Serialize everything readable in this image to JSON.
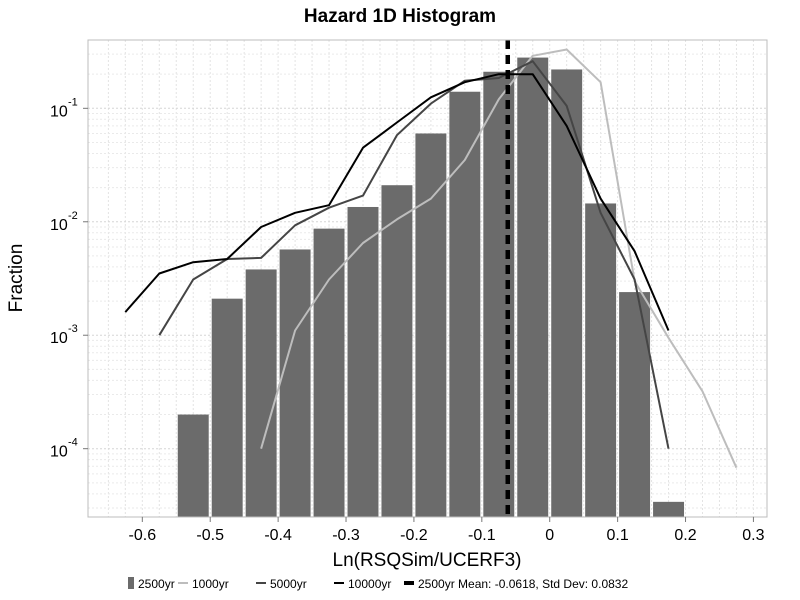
{
  "chart_data": {
    "type": "bar",
    "title": "Hazard 1D Histogram",
    "xlabel": "Ln(RSQSim/UCERF3)",
    "ylabel": "Fraction",
    "xlim": [
      -0.68,
      0.32
    ],
    "ylim": [
      2.5e-05,
      0.4
    ],
    "yscale": "log",
    "grid": true,
    "legend_position": "bottom",
    "x_ticks": [
      {
        "value": -0.6,
        "label": "-0.6"
      },
      {
        "value": -0.5,
        "label": "-0.5"
      },
      {
        "value": -0.4,
        "label": "-0.4"
      },
      {
        "value": -0.3,
        "label": "-0.3"
      },
      {
        "value": -0.2,
        "label": "-0.2"
      },
      {
        "value": -0.1,
        "label": "-0.1"
      },
      {
        "value": 0.0,
        "label": "0"
      },
      {
        "value": 0.1,
        "label": "0.1"
      },
      {
        "value": 0.2,
        "label": "0.2"
      },
      {
        "value": 0.3,
        "label": "0.3"
      }
    ],
    "y_ticks": [
      {
        "value": 0.1,
        "base": "10",
        "exp": "-1"
      },
      {
        "value": 0.01,
        "base": "10",
        "exp": "-2"
      },
      {
        "value": 0.001,
        "base": "10",
        "exp": "-3"
      },
      {
        "value": 0.0001,
        "base": "10",
        "exp": "-4"
      }
    ],
    "bars": {
      "name": "2500yr",
      "color": "#6b6b6b",
      "bin_width": 0.05,
      "centers": [
        -0.525,
        -0.475,
        -0.425,
        -0.375,
        -0.325,
        -0.275,
        -0.225,
        -0.175,
        -0.125,
        -0.075,
        -0.025,
        0.025,
        0.075,
        0.125,
        0.175
      ],
      "values": [
        0.0002,
        0.0021,
        0.0038,
        0.0057,
        0.0087,
        0.0135,
        0.021,
        0.06,
        0.14,
        0.21,
        0.28,
        0.22,
        0.0145,
        0.0024,
        3.4e-05
      ]
    },
    "series": [
      {
        "name": "1000yr",
        "color": "#bdbdbd",
        "x": [
          -0.425,
          -0.375,
          -0.325,
          -0.275,
          -0.225,
          -0.175,
          -0.125,
          -0.075,
          -0.025,
          0.025,
          0.075,
          0.125,
          0.175,
          0.225,
          0.275
        ],
        "y": [
          0.0001,
          0.0011,
          0.0031,
          0.0065,
          0.0105,
          0.016,
          0.035,
          0.12,
          0.29,
          0.33,
          0.17,
          0.003,
          0.00095,
          0.00032,
          6.8e-05
        ]
      },
      {
        "name": "5000yr",
        "color": "#454545",
        "x": [
          -0.575,
          -0.525,
          -0.475,
          -0.425,
          -0.375,
          -0.325,
          -0.275,
          -0.225,
          -0.175,
          -0.125,
          -0.075,
          -0.025,
          0.025,
          0.075,
          0.125,
          0.175
        ],
        "y": [
          0.001,
          0.0031,
          0.0047,
          0.0048,
          0.0093,
          0.0133,
          0.017,
          0.058,
          0.11,
          0.175,
          0.185,
          0.26,
          0.105,
          0.012,
          0.0031,
          0.0001
        ]
      },
      {
        "name": "10000yr",
        "color": "#000000",
        "x": [
          -0.625,
          -0.575,
          -0.525,
          -0.475,
          -0.425,
          -0.375,
          -0.325,
          -0.275,
          -0.225,
          -0.175,
          -0.125,
          -0.075,
          -0.025,
          0.025,
          0.075,
          0.125,
          0.175
        ],
        "y": [
          0.0016,
          0.0035,
          0.0044,
          0.0047,
          0.009,
          0.012,
          0.014,
          0.045,
          0.075,
          0.125,
          0.17,
          0.2,
          0.2,
          0.07,
          0.016,
          0.0055,
          0.0011
        ]
      }
    ],
    "mean_line": {
      "label": "2500yr Mean: -0.0618, Std Dev: 0.0832",
      "x": -0.0618,
      "color": "#000000"
    },
    "legend": [
      {
        "kind": "bar",
        "label": "2500yr",
        "color": "#6b6b6b"
      },
      {
        "kind": "line",
        "label": "1000yr",
        "color": "#bdbdbd"
      },
      {
        "kind": "line",
        "label": "5000yr",
        "color": "#454545"
      },
      {
        "kind": "line",
        "label": "10000yr",
        "color": "#000000"
      },
      {
        "kind": "dashed",
        "label": "2500yr Mean: -0.0618, Std Dev: 0.0832",
        "color": "#000000"
      }
    ]
  }
}
